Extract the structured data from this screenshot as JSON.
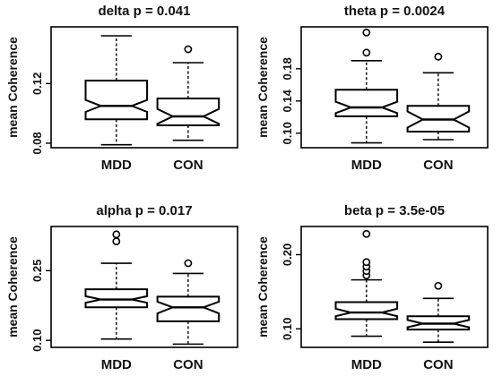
{
  "chart_data": [
    {
      "type": "boxplot",
      "title": "delta p = 0.041",
      "ylabel": "mean Coherence",
      "categories": [
        "MDD",
        "CON"
      ],
      "yticks": [
        0.08,
        0.12
      ],
      "ylim": [
        0.077,
        0.158
      ],
      "notched": true,
      "boxes": [
        {
          "name": "MDD",
          "min": 0.079,
          "q1": 0.096,
          "median": 0.105,
          "q3": 0.122,
          "max": 0.152,
          "notch": [
            0.101,
            0.109
          ],
          "outliers": []
        },
        {
          "name": "CON",
          "min": 0.082,
          "q1": 0.092,
          "median": 0.098,
          "q3": 0.11,
          "max": 0.134,
          "notch": [
            0.093,
            0.103
          ],
          "outliers": [
            0.143
          ]
        }
      ]
    },
    {
      "type": "boxplot",
      "title": "theta p = 0.0024",
      "ylabel": "mean Coherence",
      "categories": [
        "MDD",
        "CON"
      ],
      "yticks": [
        0.1,
        0.14,
        0.18
      ],
      "ylim": [
        0.082,
        0.232
      ],
      "notched": true,
      "boxes": [
        {
          "name": "MDD",
          "min": 0.088,
          "q1": 0.121,
          "median": 0.132,
          "q3": 0.154,
          "max": 0.19,
          "notch": [
            0.125,
            0.139
          ],
          "outliers": [
            0.2,
            0.225
          ]
        },
        {
          "name": "CON",
          "min": 0.092,
          "q1": 0.102,
          "median": 0.117,
          "q3": 0.134,
          "max": 0.175,
          "notch": [
            0.107,
            0.127
          ],
          "outliers": [
            0.195
          ]
        }
      ]
    },
    {
      "type": "boxplot",
      "title": "alpha p = 0.017",
      "ylabel": "mean Coherence",
      "categories": [
        "MDD",
        "CON"
      ],
      "yticks": [
        0.1,
        0.25
      ],
      "ylim": [
        0.085,
        0.345
      ],
      "notched": true,
      "boxes": [
        {
          "name": "MDD",
          "min": 0.103,
          "q1": 0.171,
          "median": 0.188,
          "q3": 0.21,
          "max": 0.266,
          "notch": [
            0.181,
            0.195
          ],
          "outliers": [
            0.313,
            0.328
          ]
        },
        {
          "name": "CON",
          "min": 0.092,
          "q1": 0.141,
          "median": 0.171,
          "q3": 0.194,
          "max": 0.244,
          "notch": [
            0.158,
            0.183
          ],
          "outliers": [
            0.266
          ]
        }
      ]
    },
    {
      "type": "boxplot",
      "title": "beta p = 3.5e-05",
      "ylabel": "mean Coherence",
      "categories": [
        "MDD",
        "CON"
      ],
      "yticks": [
        0.1,
        0.2
      ],
      "ylim": [
        0.075,
        0.238
      ],
      "notched": true,
      "boxes": [
        {
          "name": "MDD",
          "min": 0.09,
          "q1": 0.113,
          "median": 0.122,
          "q3": 0.136,
          "max": 0.166,
          "notch": [
            0.117,
            0.127
          ],
          "outliers": [
            0.172,
            0.178,
            0.184,
            0.19,
            0.228
          ]
        },
        {
          "name": "CON",
          "min": 0.082,
          "q1": 0.099,
          "median": 0.107,
          "q3": 0.117,
          "max": 0.141,
          "notch": [
            0.102,
            0.112
          ],
          "outliers": [
            0.158
          ]
        }
      ]
    }
  ]
}
